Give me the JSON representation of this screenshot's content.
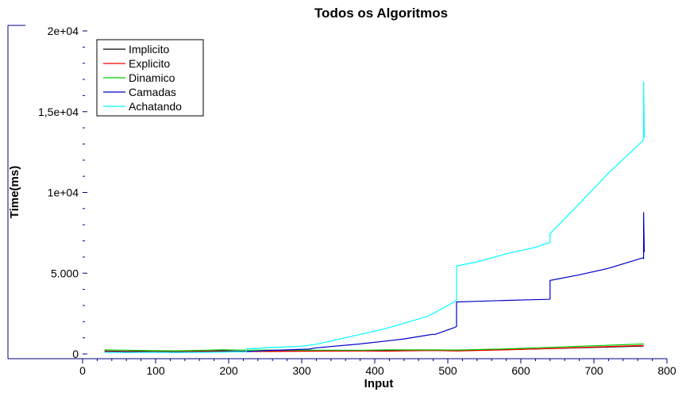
{
  "chart_data": {
    "type": "line",
    "title": "Todos os Algoritmos",
    "xlabel": "Input",
    "ylabel": "Time(ms)",
    "xlim": [
      0,
      800
    ],
    "ylim": [
      0,
      20000
    ],
    "x_ticks": [
      {
        "value": 0,
        "label": "0"
      },
      {
        "value": 100,
        "label": "100"
      },
      {
        "value": 200,
        "label": "200"
      },
      {
        "value": 300,
        "label": "300"
      },
      {
        "value": 400,
        "label": "400"
      },
      {
        "value": 500,
        "label": "500"
      },
      {
        "value": 600,
        "label": "600"
      },
      {
        "value": 700,
        "label": "700"
      },
      {
        "value": 800,
        "label": "800"
      }
    ],
    "y_ticks": [
      {
        "value": 0,
        "label": "0"
      },
      {
        "value": 5000,
        "label": "5.000"
      },
      {
        "value": 10000,
        "label": "1e+04"
      },
      {
        "value": 15000,
        "label": "1,5e+04"
      },
      {
        "value": 20000,
        "label": "2e+04"
      }
    ],
    "grid": false,
    "legend_position": "top-left",
    "series": [
      {
        "name": "Implicito",
        "color": "#000000",
        "points": [
          [
            30,
            180
          ],
          [
            60,
            150
          ],
          [
            96,
            170
          ],
          [
            128,
            140
          ],
          [
            160,
            170
          ],
          [
            192,
            190
          ],
          [
            224,
            160
          ],
          [
            256,
            170
          ],
          [
            320,
            190
          ],
          [
            384,
            200
          ],
          [
            416,
            190
          ],
          [
            480,
            240
          ],
          [
            512,
            200
          ],
          [
            576,
            260
          ],
          [
            640,
            330
          ],
          [
            704,
            410
          ],
          [
            768,
            490
          ]
        ]
      },
      {
        "name": "Explicito",
        "color": "#ff0000",
        "points": [
          [
            30,
            150
          ],
          [
            60,
            130
          ],
          [
            96,
            140
          ],
          [
            128,
            130
          ],
          [
            160,
            150
          ],
          [
            192,
            160
          ],
          [
            224,
            150
          ],
          [
            256,
            150
          ],
          [
            320,
            170
          ],
          [
            384,
            180
          ],
          [
            416,
            170
          ],
          [
            480,
            210
          ],
          [
            512,
            180
          ],
          [
            576,
            250
          ],
          [
            640,
            340
          ],
          [
            704,
            430
          ],
          [
            768,
            520
          ]
        ]
      },
      {
        "name": "Dinamico",
        "color": "#00cc00",
        "points": [
          [
            30,
            250
          ],
          [
            60,
            230
          ],
          [
            96,
            200
          ],
          [
            128,
            190
          ],
          [
            160,
            220
          ],
          [
            192,
            260
          ],
          [
            224,
            230
          ],
          [
            256,
            240
          ],
          [
            320,
            230
          ],
          [
            384,
            230
          ],
          [
            416,
            250
          ],
          [
            480,
            250
          ],
          [
            512,
            240
          ],
          [
            576,
            310
          ],
          [
            640,
            410
          ],
          [
            704,
            510
          ],
          [
            768,
            620
          ]
        ]
      },
      {
        "name": "Camadas",
        "color": "#0000cc",
        "points": [
          [
            30,
            120
          ],
          [
            60,
            100
          ],
          [
            96,
            110
          ],
          [
            128,
            100
          ],
          [
            160,
            110
          ],
          [
            192,
            130
          ],
          [
            210,
            150
          ],
          [
            224,
            140
          ],
          [
            250,
            200
          ],
          [
            260,
            220
          ],
          [
            290,
            270
          ],
          [
            310,
            300
          ],
          [
            320,
            380
          ],
          [
            380,
            620
          ],
          [
            416,
            800
          ],
          [
            440,
            930
          ],
          [
            470,
            1150
          ],
          [
            480,
            1220
          ],
          [
            482,
            1200
          ],
          [
            510,
            1650
          ],
          [
            512,
            1700
          ],
          [
            512,
            3220
          ],
          [
            540,
            3260
          ],
          [
            570,
            3300
          ],
          [
            610,
            3350
          ],
          [
            638,
            3380
          ],
          [
            640,
            3400
          ],
          [
            640,
            4550
          ],
          [
            680,
            4900
          ],
          [
            720,
            5300
          ],
          [
            767,
            5950
          ],
          [
            768,
            5900
          ],
          [
            768,
            8750
          ],
          [
            769,
            6300
          ]
        ]
      },
      {
        "name": "Achatando",
        "color": "#00ffff",
        "points": [
          [
            30,
            110
          ],
          [
            60,
            90
          ],
          [
            96,
            100
          ],
          [
            128,
            90
          ],
          [
            160,
            100
          ],
          [
            192,
            120
          ],
          [
            210,
            140
          ],
          [
            224,
            130
          ],
          [
            225,
            320
          ],
          [
            240,
            350
          ],
          [
            256,
            400
          ],
          [
            270,
            420
          ],
          [
            300,
            480
          ],
          [
            320,
            600
          ],
          [
            360,
            1000
          ],
          [
            416,
            1580
          ],
          [
            440,
            1900
          ],
          [
            470,
            2300
          ],
          [
            480,
            2500
          ],
          [
            512,
            3300
          ],
          [
            512,
            5450
          ],
          [
            540,
            5700
          ],
          [
            580,
            6200
          ],
          [
            620,
            6600
          ],
          [
            636,
            6850
          ],
          [
            640,
            6900
          ],
          [
            640,
            7450
          ],
          [
            680,
            9300
          ],
          [
            720,
            11200
          ],
          [
            767,
            13200
          ],
          [
            768,
            13400
          ],
          [
            768,
            16850
          ],
          [
            769,
            13400
          ]
        ]
      }
    ]
  }
}
